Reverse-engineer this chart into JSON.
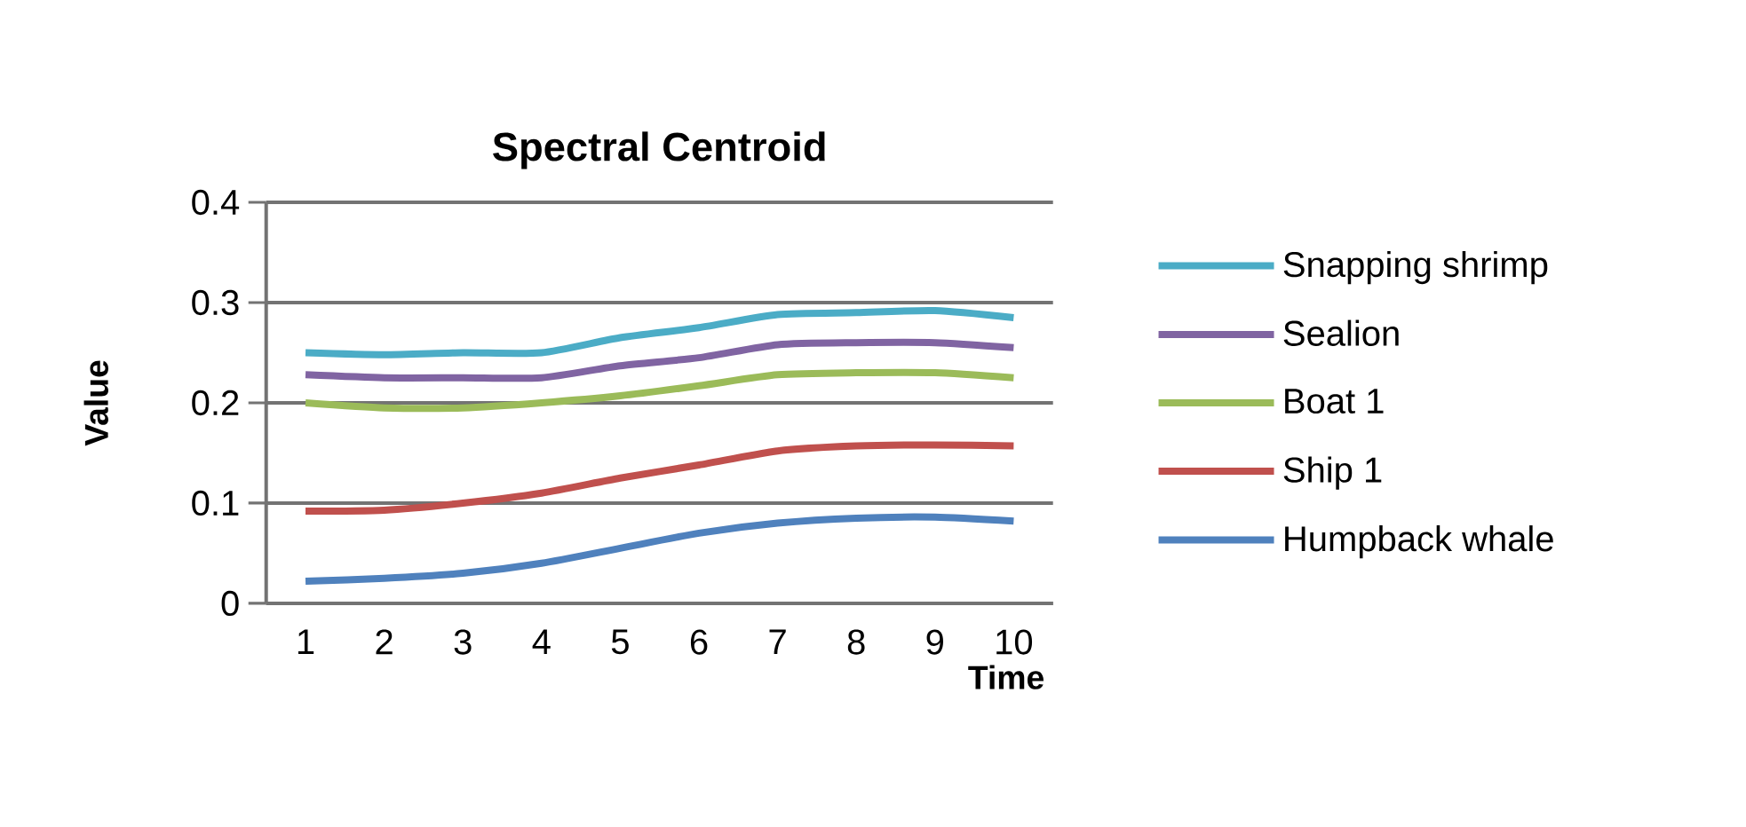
{
  "chart_data": {
    "type": "line",
    "title": "Spectral Centroid",
    "xlabel": "Time",
    "ylabel": "Value",
    "categories": [
      "1",
      "2",
      "3",
      "4",
      "5",
      "6",
      "7",
      "8",
      "9",
      "10"
    ],
    "series": [
      {
        "name": "Snapping shrimp",
        "color": "#4bacc6",
        "values": [
          0.25,
          0.248,
          0.25,
          0.25,
          0.265,
          0.275,
          0.288,
          0.29,
          0.292,
          0.285
        ]
      },
      {
        "name": "Sealion",
        "color": "#8064a2",
        "values": [
          0.228,
          0.225,
          0.225,
          0.225,
          0.237,
          0.245,
          0.258,
          0.26,
          0.26,
          0.255
        ]
      },
      {
        "name": "Boat 1",
        "color": "#9bbb59",
        "values": [
          0.2,
          0.195,
          0.195,
          0.2,
          0.207,
          0.217,
          0.228,
          0.23,
          0.23,
          0.225
        ]
      },
      {
        "name": "Ship 1",
        "color": "#c0504d",
        "values": [
          0.092,
          0.093,
          0.1,
          0.11,
          0.125,
          0.138,
          0.152,
          0.157,
          0.158,
          0.157
        ]
      },
      {
        "name": "Humpback whale",
        "color": "#4f81bd",
        "values": [
          0.022,
          0.025,
          0.03,
          0.04,
          0.055,
          0.07,
          0.08,
          0.085,
          0.086,
          0.082
        ]
      }
    ],
    "ylim": [
      0,
      0.4
    ],
    "yticks": [
      0,
      0.1,
      0.2,
      0.3,
      0.4
    ],
    "grid": "y",
    "legend": "right",
    "marker": "none",
    "line_style": "solid"
  }
}
